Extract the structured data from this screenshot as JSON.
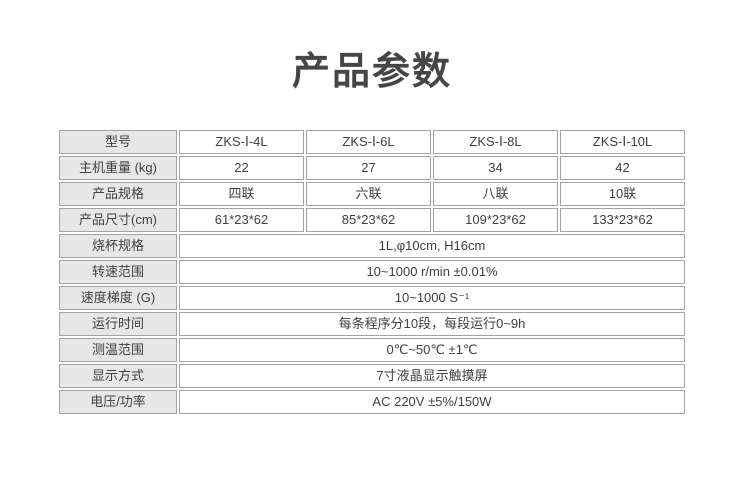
{
  "page": {
    "title": "产品参数"
  },
  "table": {
    "rows": [
      {
        "label": "型号",
        "values": [
          "ZKS-Ⅰ-4L",
          "ZKS-Ⅰ-6L",
          "ZKS-Ⅰ-8L",
          "ZKS-Ⅰ-10L"
        ]
      },
      {
        "label": "主机重量 (kg)",
        "values": [
          "22",
          "27",
          "34",
          "42"
        ]
      },
      {
        "label": "产品规格",
        "values": [
          "四联",
          "六联",
          "八联",
          "10联"
        ]
      },
      {
        "label": "产品尺寸(cm)",
        "values": [
          "61*23*62",
          "85*23*62",
          "109*23*62",
          "133*23*62"
        ]
      },
      {
        "label": "烧杯规格",
        "values": [
          "1L,φ10cm, H16cm"
        ]
      },
      {
        "label": "转速范围",
        "values": [
          "10~1000 r/min ±0.01%"
        ]
      },
      {
        "label": "速度梯度 (G)",
        "values": [
          "10~1000 S⁻¹"
        ]
      },
      {
        "label": "运行时间",
        "values": [
          "每条程序分10段，每段运行0~9h"
        ]
      },
      {
        "label": "测温范围",
        "values": [
          "0℃~50℃ ±1℃"
        ]
      },
      {
        "label": "显示方式",
        "values": [
          "7寸液晶显示触摸屏"
        ]
      },
      {
        "label": "电压/功率",
        "values": [
          "AC 220V ±5%/150W"
        ]
      }
    ]
  }
}
